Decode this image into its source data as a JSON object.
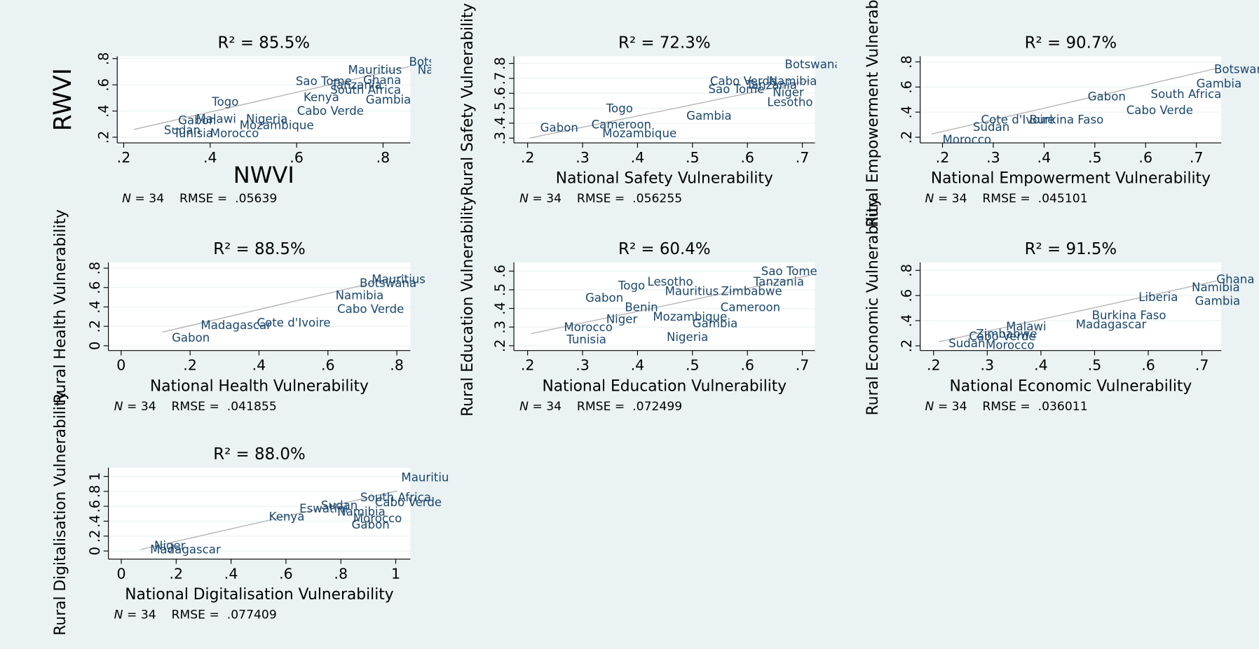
{
  "chart_data": [
    {
      "type": "scatter",
      "title": "R² = 85.5%",
      "xlabel": "NWVI",
      "ylabel": "RWVI",
      "note_n": "N",
      "note_text": "= 34    RMSE =  .05639",
      "xlim": [
        0.185,
        0.863
      ],
      "ylim": [
        0.157,
        0.818
      ],
      "xticks": [
        {
          "value": 0.2,
          "label": ".2"
        },
        {
          "value": 0.4,
          "label": ".4"
        },
        {
          "value": 0.6,
          "label": ".6"
        },
        {
          "value": 0.8,
          "label": ".8"
        }
      ],
      "yticks": [
        {
          "value": 0.2,
          "label": ".2"
        },
        {
          "value": 0.4,
          "label": ".4"
        },
        {
          "value": 0.6,
          "label": ".6"
        },
        {
          "value": 0.8,
          "label": ".8"
        }
      ],
      "grid": true,
      "color": "#1a476f",
      "fit_color": "#b4b4b4",
      "labels": [
        "Botswana",
        "Namibia",
        "Mauritius",
        "Sao Tome",
        "Ghana",
        "Tanzania",
        "South Africa",
        "Gambia",
        "Kenya",
        "Togo",
        "Cabo Verde",
        "Mozambique",
        "Malawi",
        "Nigeria",
        "Gabon",
        "Morocco",
        "Sudan",
        "Tunisia"
      ],
      "x": [
        0.86,
        0.88,
        0.719,
        0.598,
        0.754,
        0.68,
        0.678,
        0.76,
        0.616,
        0.404,
        0.601,
        0.468,
        0.367,
        0.483,
        0.326,
        0.4,
        0.293,
        0.315
      ],
      "y": [
        0.777,
        0.715,
        0.715,
        0.629,
        0.636,
        0.6,
        0.562,
        0.488,
        0.507,
        0.47,
        0.402,
        0.292,
        0.341,
        0.341,
        0.329,
        0.231,
        0.255,
        0.23
      ],
      "fit": {
        "x": [
          0.224,
          0.862
        ],
        "y": [
          0.26,
          0.74
        ]
      }
    },
    {
      "type": "scatter",
      "title": "R² = 72.3%",
      "xlabel": "National Safety Vulnerability",
      "ylabel": "Rural Safety Vulnerability",
      "note_n": "N",
      "note_text": "= 34    RMSE =  .056255",
      "xlim": [
        0.175,
        0.723
      ],
      "ylim": [
        0.268,
        0.848
      ],
      "xticks": [
        {
          "value": 0.2,
          "label": ".2"
        },
        {
          "value": 0.3,
          "label": ".3"
        },
        {
          "value": 0.4,
          "label": ".4"
        },
        {
          "value": 0.5,
          "label": ".5"
        },
        {
          "value": 0.6,
          "label": ".6"
        },
        {
          "value": 0.7,
          "label": ".7"
        }
      ],
      "yticks": [
        {
          "value": 0.3,
          "label": ".3"
        },
        {
          "value": 0.4,
          "label": ".4"
        },
        {
          "value": 0.5,
          "label": ".5"
        },
        {
          "value": 0.6,
          "label": ".6"
        },
        {
          "value": 0.7,
          "label": ".7"
        },
        {
          "value": 0.8,
          "label": ".8"
        }
      ],
      "grid": true,
      "color": "#1a476f",
      "fit_color": "#b4b4b4",
      "labels": [
        "Botswana",
        "Namibia",
        "Cabo Verde",
        "Tanzania",
        "Sao Tome",
        "Niger",
        "Lesotho",
        "Togo",
        "Gabon",
        "Cameroon",
        "Mozambique",
        "Gambia"
      ],
      "x": [
        0.668,
        0.639,
        0.532,
        0.598,
        0.529,
        0.646,
        0.636,
        0.343,
        0.223,
        0.316,
        0.336,
        0.489
      ],
      "y": [
        0.795,
        0.682,
        0.682,
        0.655,
        0.628,
        0.606,
        0.542,
        0.499,
        0.37,
        0.391,
        0.332,
        0.451
      ],
      "fit": {
        "x": [
          0.204,
          0.716
        ],
        "y": [
          0.3,
          0.687
        ]
      }
    },
    {
      "type": "scatter",
      "title": "R² = 90.7%",
      "xlabel": "National Empowerment Vulnerability",
      "ylabel": "Rural Empowerment Vulnerability",
      "note_n": "N",
      "note_text": "= 34    RMSE =  .045101",
      "xlim": [
        0.156,
        0.749
      ],
      "ylim": [
        0.155,
        0.845
      ],
      "xticks": [
        {
          "value": 0.2,
          "label": ".2"
        },
        {
          "value": 0.3,
          "label": ".3"
        },
        {
          "value": 0.4,
          "label": ".4"
        },
        {
          "value": 0.5,
          "label": ".5"
        },
        {
          "value": 0.6,
          "label": ".6"
        },
        {
          "value": 0.7,
          "label": ".7"
        }
      ],
      "yticks": [
        {
          "value": 0.2,
          "label": ".2"
        },
        {
          "value": 0.4,
          "label": ".4"
        },
        {
          "value": 0.6,
          "label": ".6"
        },
        {
          "value": 0.8,
          "label": ".8"
        }
      ],
      "grid": true,
      "color": "#1a476f",
      "fit_color": "#b4b4b4",
      "labels": [
        "Botswana",
        "Gambia",
        "South Africa",
        "Gabon",
        "Cabo Verde",
        "Cote d'Ivoire",
        "Burkina Faso",
        "Sudan",
        "Morocco"
      ],
      "x": [
        0.735,
        0.7,
        0.61,
        0.486,
        0.562,
        0.276,
        0.371,
        0.26,
        0.2
      ],
      "y": [
        0.741,
        0.627,
        0.544,
        0.525,
        0.417,
        0.34,
        0.34,
        0.283,
        0.181
      ],
      "fit": {
        "x": [
          0.178,
          0.74
        ],
        "y": [
          0.225,
          0.748
        ]
      }
    },
    {
      "type": "scatter",
      "title": "R² = 88.5%",
      "xlabel": "National Health Vulnerability",
      "ylabel": "Rural Health Vulnerability",
      "note_n": "N",
      "note_text": "= 34    RMSE =  .041855",
      "xlim": [
        -0.037,
        0.839
      ],
      "ylim": [
        -0.05,
        0.86
      ],
      "xticks": [
        0,
        {
          "value": 0.2,
          "label": ".2"
        },
        {
          "value": 0.4,
          "label": ".4"
        },
        {
          "value": 0.6,
          "label": ".6"
        },
        {
          "value": 0.8,
          "label": ".8"
        }
      ],
      "yticks": [
        0,
        {
          "value": 0.2,
          "label": ".2"
        },
        {
          "value": 0.4,
          "label": ".4"
        },
        {
          "value": 0.6,
          "label": ".6"
        },
        {
          "value": 0.8,
          "label": ".8"
        }
      ],
      "grid": true,
      "color": "#1a476f",
      "fit_color": "#b4b4b4",
      "labels": [
        "Mauritius",
        "Botswana",
        "Namibia",
        "Cabo Verde",
        "Cote d'Ivoire",
        "Madagascar",
        "Gabon"
      ],
      "x": [
        0.727,
        0.692,
        0.622,
        0.627,
        0.394,
        0.231,
        0.147
      ],
      "y": [
        0.686,
        0.645,
        0.521,
        0.38,
        0.24,
        0.215,
        0.083
      ],
      "fit": {
        "x": [
          0.119,
          0.825
        ],
        "y": [
          0.14,
          0.727
        ]
      }
    },
    {
      "type": "scatter",
      "title": "R² = 60.4%",
      "xlabel": "National Education Vulnerability",
      "ylabel": "Rural Education Vulnerability",
      "note_n": "N",
      "note_text": "= 34    RMSE =  .072499",
      "xlim": [
        0.175,
        0.723
      ],
      "ylim": [
        0.174,
        0.647
      ],
      "xticks": [
        {
          "value": 0.2,
          "label": ".2"
        },
        {
          "value": 0.3,
          "label": ".3"
        },
        {
          "value": 0.4,
          "label": ".4"
        },
        {
          "value": 0.5,
          "label": ".5"
        },
        {
          "value": 0.6,
          "label": ".6"
        },
        {
          "value": 0.7,
          "label": ".7"
        }
      ],
      "yticks": [
        {
          "value": 0.2,
          "label": ".2"
        },
        {
          "value": 0.3,
          "label": ".3"
        },
        {
          "value": 0.4,
          "label": ".4"
        },
        {
          "value": 0.5,
          "label": ".5"
        },
        {
          "value": 0.6,
          "label": ".6"
        }
      ],
      "grid": true,
      "color": "#1a476f",
      "fit_color": "#b4b4b4",
      "labels": [
        "Sao Tome",
        "Tanzania",
        "Togo",
        "Lesotho",
        "Mauritius",
        "Zimbabwe",
        "Gabon",
        "Benin",
        "Cameroon",
        "Mozambique",
        "Gambia",
        "Niger",
        "Morocco",
        "Tunisia",
        "Nigeria"
      ],
      "x": [
        0.625,
        0.611,
        0.365,
        0.418,
        0.45,
        0.552,
        0.305,
        0.377,
        0.551,
        0.428,
        0.5,
        0.343,
        0.266,
        0.271,
        0.453
      ],
      "y": [
        0.6,
        0.544,
        0.523,
        0.544,
        0.492,
        0.492,
        0.458,
        0.406,
        0.406,
        0.355,
        0.32,
        0.342,
        0.299,
        0.234,
        0.247
      ],
      "fit": {
        "x": [
          0.207,
          0.716
        ],
        "y": [
          0.265,
          0.579
        ]
      }
    },
    {
      "type": "scatter",
      "title": "R² = 91.5%",
      "xlabel": "National Economic Vulnerability",
      "ylabel": "Rural Economic Vulnerability",
      "note_n": "N",
      "note_text": "= 34    RMSE =  .036011",
      "xlim": [
        0.175,
        0.736
      ],
      "ylim": [
        0.162,
        0.864
      ],
      "xticks": [
        {
          "value": 0.2,
          "label": ".2"
        },
        {
          "value": 0.3,
          "label": ".3"
        },
        {
          "value": 0.4,
          "label": ".4"
        },
        {
          "value": 0.5,
          "label": ".5"
        },
        {
          "value": 0.6,
          "label": ".6"
        },
        {
          "value": 0.7,
          "label": ".7"
        }
      ],
      "yticks": [
        {
          "value": 0.2,
          "label": ".2"
        },
        {
          "value": 0.4,
          "label": ".4"
        },
        {
          "value": 0.6,
          "label": ".6"
        },
        {
          "value": 0.8,
          "label": ".8"
        }
      ],
      "grid": true,
      "color": "#1a476f",
      "fit_color": "#b4b4b4",
      "labels": [
        "Ghana",
        "Namibia",
        "Gambia",
        "Liberia",
        "Burkina Faso",
        "Madagascar",
        "Malawi",
        "Zimbabwe",
        "Cabo Verde",
        "Sudan",
        "Morocco"
      ],
      "x": [
        0.727,
        0.681,
        0.687,
        0.582,
        0.495,
        0.465,
        0.335,
        0.279,
        0.266,
        0.228,
        0.297
      ],
      "y": [
        0.729,
        0.665,
        0.557,
        0.589,
        0.442,
        0.372,
        0.353,
        0.296,
        0.276,
        0.219,
        0.206
      ],
      "fit": {
        "x": [
          0.21,
          0.727
        ],
        "y": [
          0.232,
          0.716
        ]
      }
    },
    {
      "type": "scatter",
      "title": "R² = 88.0%",
      "xlabel": "National Digitalisation Vulnerability",
      "ylabel": "Rural Digitalisation Vulnerability",
      "note_n": "N",
      "note_text": "= 34    RMSE =  .077409",
      "xlim": [
        -0.047,
        1.053
      ],
      "ylim": [
        -0.108,
        1.118
      ],
      "xticks": [
        0,
        {
          "value": 0.2,
          "label": ".2"
        },
        {
          "value": 0.4,
          "label": ".4"
        },
        {
          "value": 0.6,
          "label": ".6"
        },
        {
          "value": 0.8,
          "label": ".8"
        },
        1
      ],
      "yticks": [
        0,
        {
          "value": 0.2,
          "label": ".2"
        },
        {
          "value": 0.4,
          "label": ".4"
        },
        {
          "value": 0.6,
          "label": ".6"
        },
        {
          "value": 0.8,
          "label": ".8"
        },
        1
      ],
      "grid": true,
      "color": "#1a476f",
      "fit_color": "#b4b4b4",
      "labels": [
        "Mauritius",
        "South Africa",
        "Cabo Verde",
        "Sudan",
        "Namibia",
        "Eswatini",
        "Kenya",
        "Morocco",
        "Gabon",
        "Madagascar",
        "Niger"
      ],
      "x": [
        1.02,
        0.871,
        0.924,
        0.728,
        0.787,
        0.649,
        0.538,
        0.845,
        0.839,
        0.105,
        0.12
      ],
      "y": [
        0.989,
        0.72,
        0.656,
        0.613,
        0.527,
        0.57,
        0.462,
        0.441,
        0.355,
        0.022,
        0.075
      ],
      "fit": {
        "x": [
          0.07,
          1.006
        ],
        "y": [
          0.02,
          0.806
        ]
      }
    }
  ]
}
